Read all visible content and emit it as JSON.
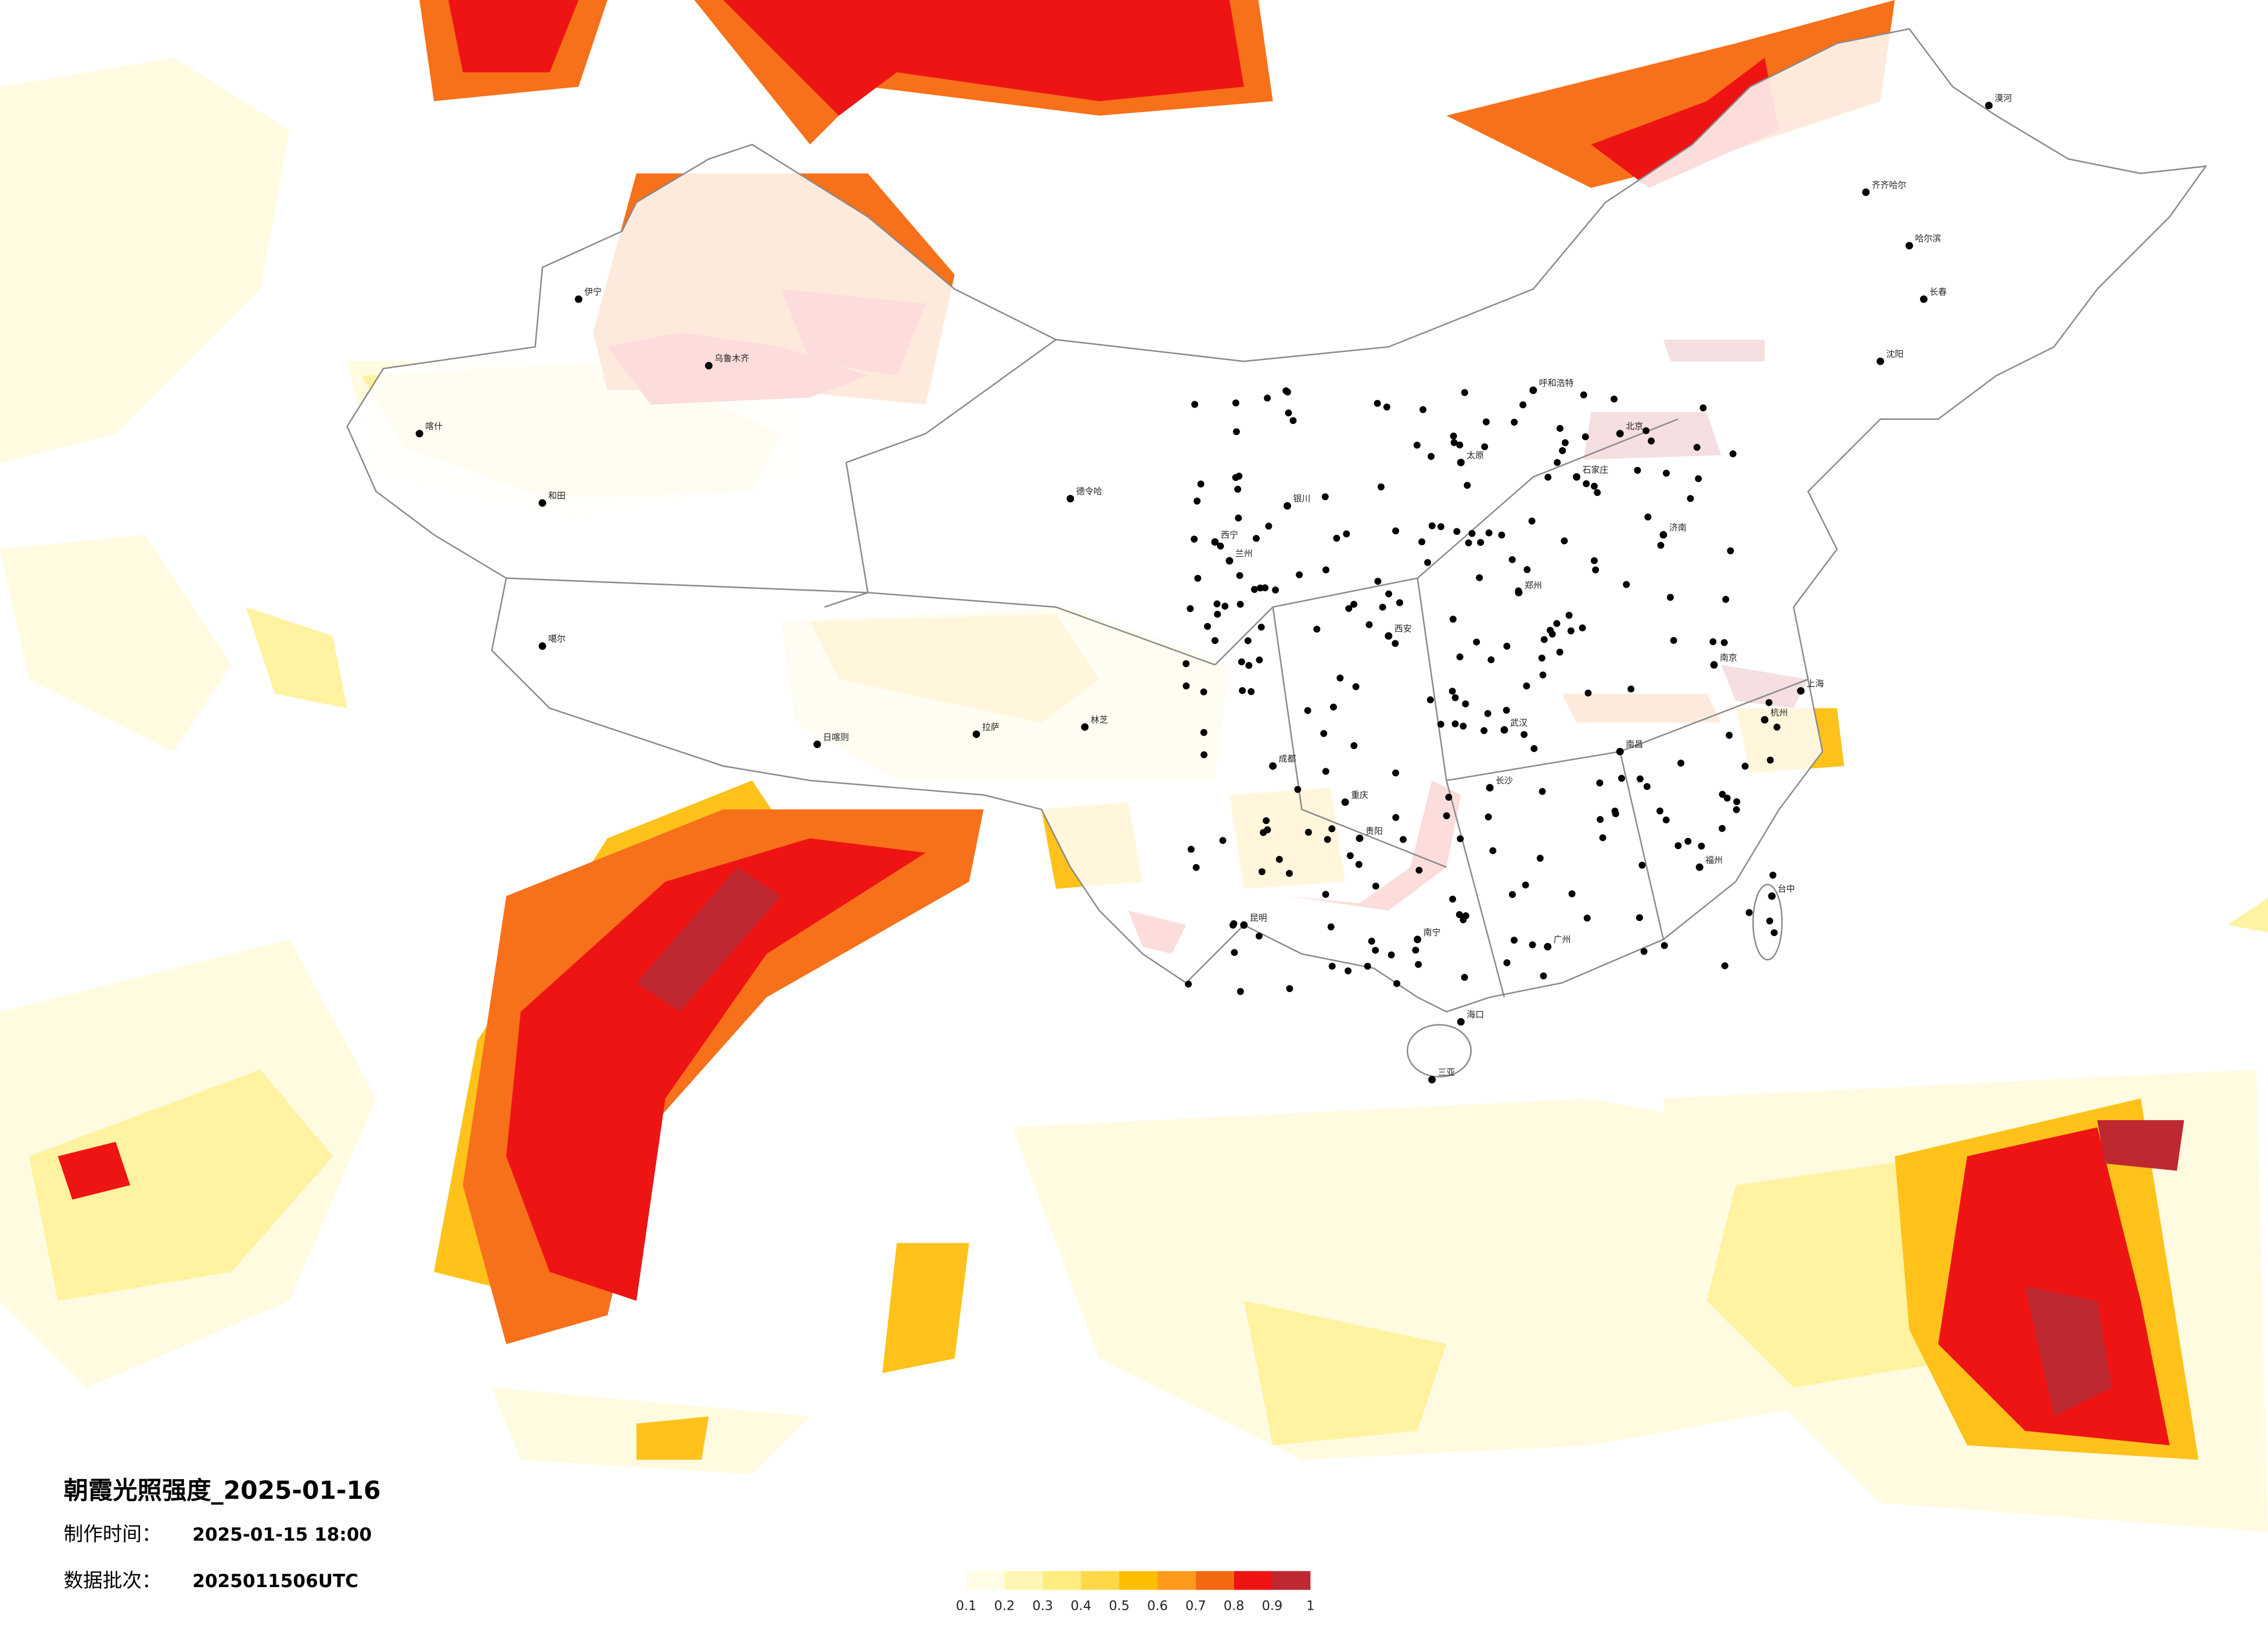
{
  "title": "朝霞光照强度_2025-01-16",
  "info": [
    {
      "label": "制作时间：",
      "value": "2025-01-15 18:00"
    },
    {
      "label": "数据批次：",
      "value": "2025011506UTC"
    }
  ],
  "legend": {
    "ticks": [
      0.1,
      0.2,
      0.3,
      0.4,
      0.5,
      0.6,
      0.7,
      0.8,
      0.9,
      1
    ],
    "colors": [
      "#fffde6",
      "#fff6b5",
      "#ffec7f",
      "#ffd84a",
      "#ffbe00",
      "#ff9a1c",
      "#f56812",
      "#ee1212",
      "#be2830"
    ]
  },
  "cities": [
    "漠河",
    "齐齐哈尔",
    "哈尔滨",
    "长春",
    "沈阳",
    "呼和浩特",
    "北京",
    "乌鲁木齐",
    "伊宁",
    "喀什",
    "和田",
    "噶尔",
    "拉萨",
    "林芝",
    "日喀则",
    "德令哈",
    "西宁",
    "兰州",
    "银川",
    "西安",
    "成都",
    "重庆",
    "昆明",
    "贵阳",
    "南宁",
    "广州",
    "福州",
    "台中",
    "海口",
    "三亚",
    "武汉",
    "长沙",
    "南昌",
    "上海",
    "杭州",
    "南京",
    "济南",
    "郑州",
    "太原",
    "石家庄"
  ]
}
